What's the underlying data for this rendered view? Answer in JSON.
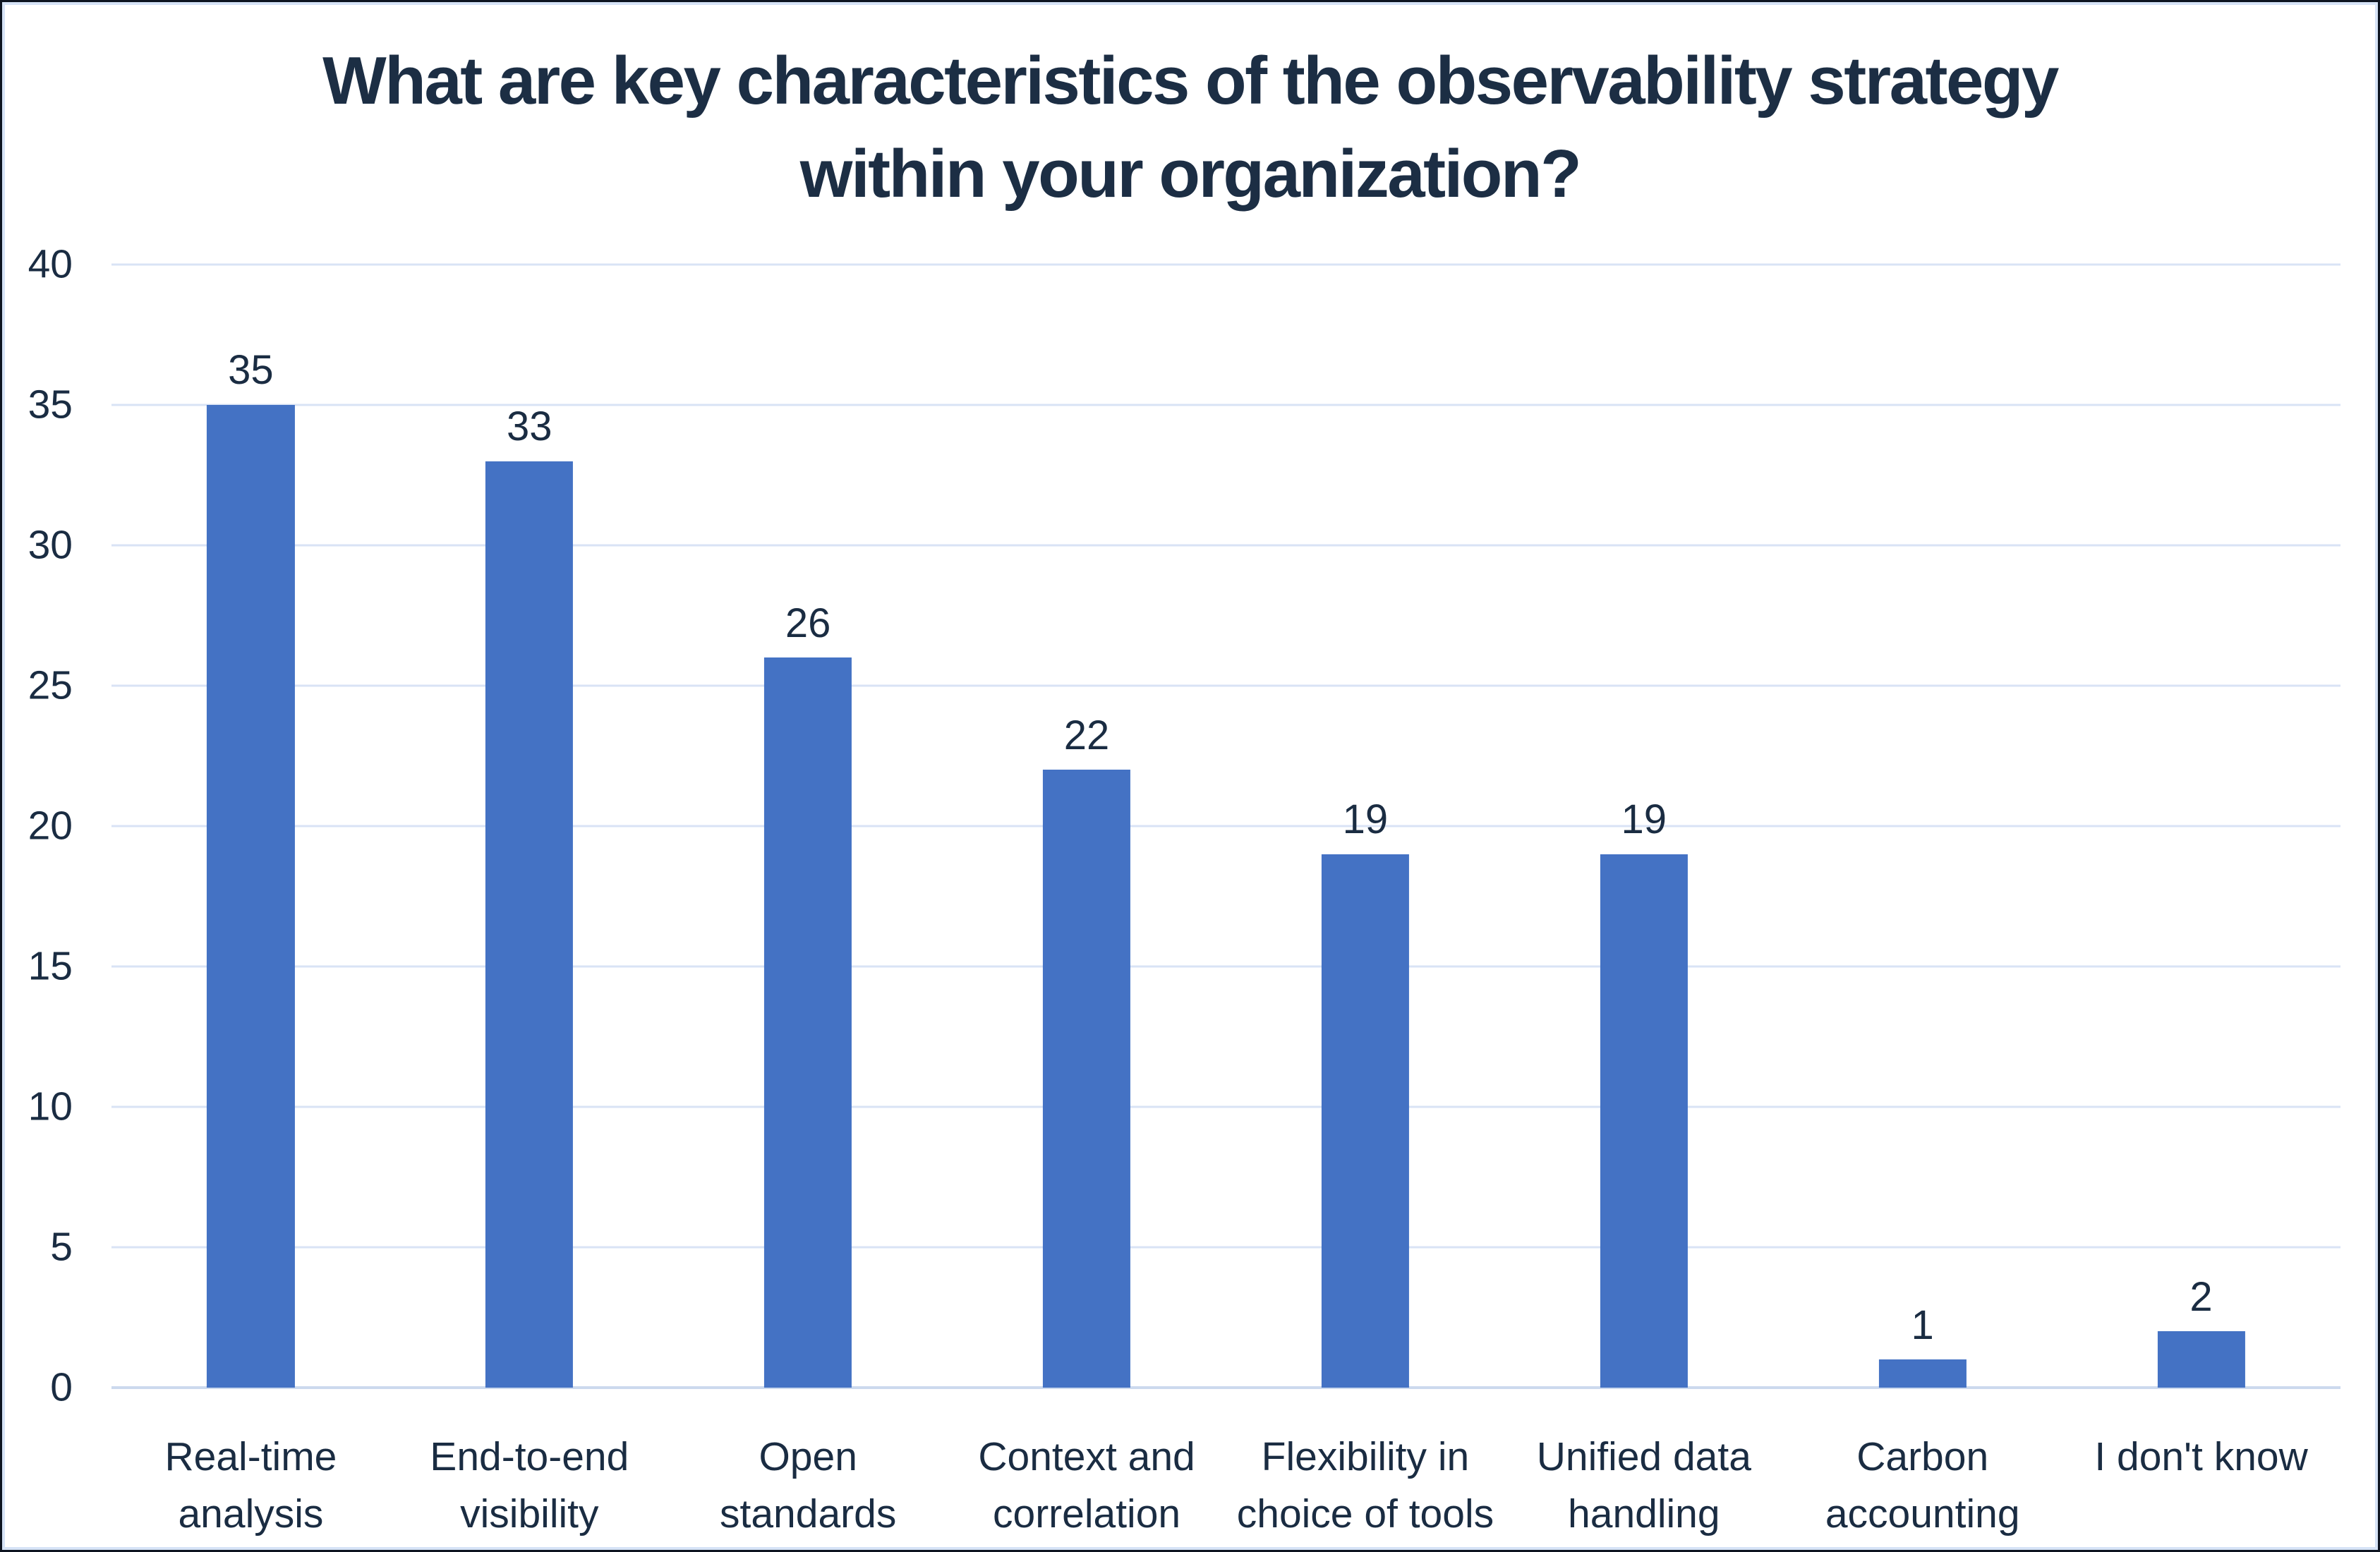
{
  "chart_data": {
    "type": "bar",
    "title": "What are key characteristics of the observability strategy within your organization?",
    "title_lines": [
      "What are key characteristics of the observability strategy",
      "within your organization?"
    ],
    "categories": [
      "Real-time analysis",
      "End-to-end visibility",
      "Open standards",
      "Context and correlation",
      "Flexibility in choice of tools",
      "Unified data handling",
      "Carbon accounting",
      "I don't know"
    ],
    "category_lines": [
      [
        "Real-time",
        "analysis"
      ],
      [
        "End-to-end",
        "visibility"
      ],
      [
        "Open",
        "standards"
      ],
      [
        "Context and",
        "correlation"
      ],
      [
        "Flexibility in",
        "choice of tools"
      ],
      [
        "Unified data",
        "handling"
      ],
      [
        "Carbon",
        "accounting"
      ],
      [
        "I don't know"
      ]
    ],
    "values": [
      35,
      33,
      26,
      22,
      19,
      19,
      1,
      2
    ],
    "xlabel": "",
    "ylabel": "",
    "ylim": [
      0,
      40
    ],
    "yticks": [
      0,
      5,
      10,
      15,
      20,
      25,
      30,
      35,
      40
    ],
    "grid": true,
    "legend": false,
    "data_labels": true,
    "colors": {
      "bar": "#4472C4",
      "text": "#1A2C42",
      "title_text": "#1C2E44",
      "gridline": "#D9E3F5",
      "axis_line": "#CCD9EE",
      "border_inner": "#D6E3F6",
      "border_outer": "#0D1420",
      "background": "#FFFFFF"
    }
  }
}
